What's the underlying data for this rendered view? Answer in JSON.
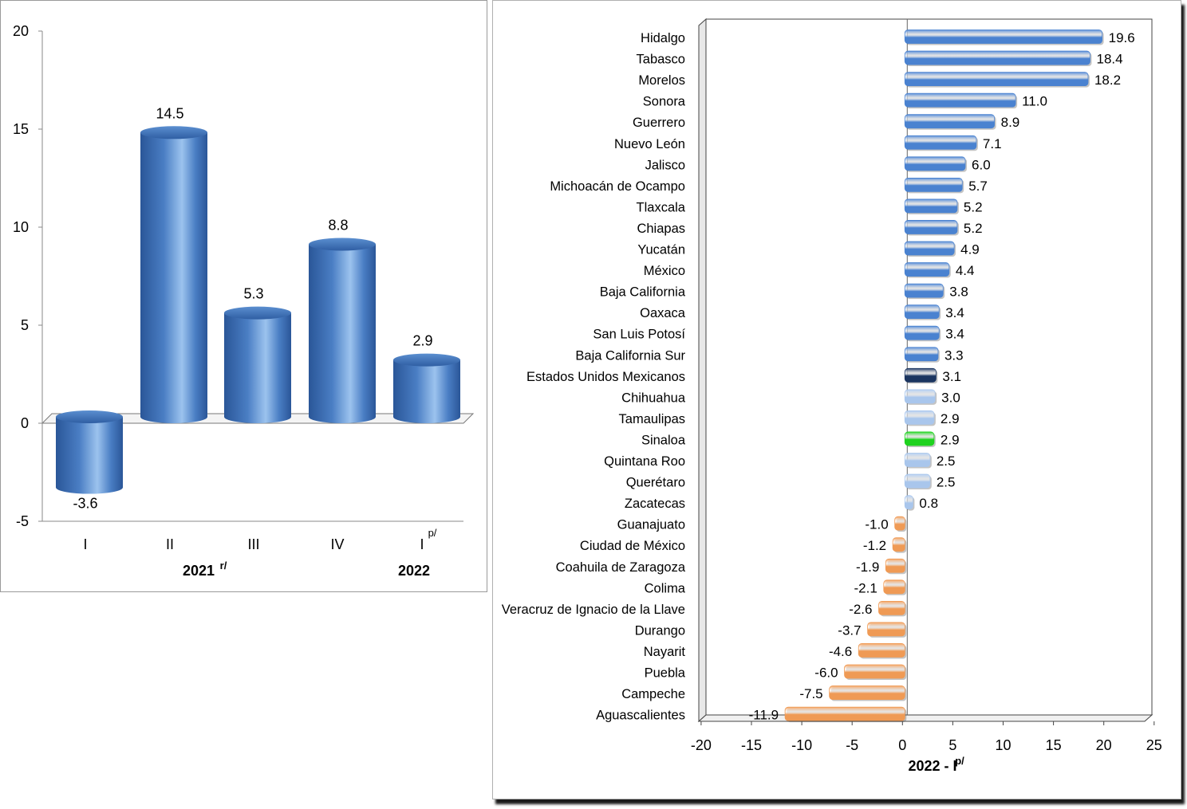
{
  "chart_data": [
    {
      "type": "bar",
      "style": "3d-cylinder",
      "title": "",
      "categories": [
        "I",
        "II",
        "III",
        "IV",
        "I"
      ],
      "category_superscripts": [
        "",
        "",
        "",
        "",
        "p/"
      ],
      "groups": [
        {
          "label": "2021",
          "superscript": "r/",
          "categories": [
            "I",
            "II",
            "III",
            "IV"
          ]
        },
        {
          "label": "2022",
          "superscript": "",
          "categories": [
            "I"
          ]
        }
      ],
      "values": [
        -3.6,
        14.5,
        5.3,
        8.8,
        2.9
      ],
      "value_labels": [
        "-3.6",
        "14.5",
        "5.3",
        "8.8",
        "2.9"
      ],
      "ylim": [
        -5,
        20
      ],
      "yticks": [
        "-5",
        "0",
        "5",
        "10",
        "15",
        "20"
      ],
      "ytick_values": [
        -5,
        0,
        5,
        10,
        15,
        20
      ],
      "xlabel": "",
      "ylabel": "",
      "colors": {
        "bar": "#4a7ec4",
        "bar_light": "#9cc3ee",
        "bar_dark": "#2a5698"
      }
    },
    {
      "type": "bar",
      "orientation": "horizontal",
      "xlabel": "2022 - I",
      "xlabel_superscript": "p/",
      "xlim": [
        -20,
        25
      ],
      "xticks": [
        "-20",
        "-15",
        "-10",
        "-5",
        "0",
        "5",
        "10",
        "15",
        "20",
        "25"
      ],
      "xtick_values": [
        -20,
        -15,
        -10,
        -5,
        0,
        5,
        10,
        15,
        20,
        25
      ],
      "categories": [
        "Hidalgo",
        "Tabasco",
        "Morelos",
        "Sonora",
        "Guerrero",
        "Nuevo León",
        "Jalisco",
        "Michoacán de Ocampo",
        "Tlaxcala",
        "Chiapas",
        "Yucatán",
        "México",
        "Baja California",
        "Oaxaca",
        "San Luis Potosí",
        "Baja California Sur",
        "Estados Unidos Mexicanos",
        "Chihuahua",
        "Tamaulipas",
        "Sinaloa",
        "Quintana Roo",
        "Querétaro",
        "Zacatecas",
        "Guanajuato",
        "Ciudad de México",
        "Coahuila de Zaragoza",
        "Colima",
        "Veracruz de Ignacio de la Llave",
        "Durango",
        "Nayarit",
        "Puebla",
        "Campeche",
        "Aguascalientes"
      ],
      "values": [
        19.6,
        18.4,
        18.2,
        11.0,
        8.9,
        7.1,
        6.0,
        5.7,
        5.2,
        5.2,
        4.9,
        4.4,
        3.8,
        3.4,
        3.4,
        3.3,
        3.1,
        3.0,
        2.9,
        2.9,
        2.5,
        2.5,
        0.8,
        -1.0,
        -1.2,
        -1.9,
        -2.1,
        -2.6,
        -3.7,
        -4.6,
        -6.0,
        -7.5,
        -11.9
      ],
      "value_labels": [
        "19.6",
        "18.4",
        "18.2",
        "11.0",
        "8.9",
        "7.1",
        "6.0",
        "5.7",
        "5.2",
        "5.2",
        "4.9",
        "4.4",
        "3.8",
        "3.4",
        "3.4",
        "3.3",
        "3.1",
        "3.0",
        "2.9",
        "2.9",
        "2.5",
        "2.5",
        "0.8",
        "-1.0",
        "-1.2",
        "-1.9",
        "-2.1",
        "-2.6",
        "-3.7",
        "-4.6",
        "-6.0",
        "-7.5",
        "-11.9"
      ],
      "bar_groups": [
        "above",
        "above",
        "above",
        "above",
        "above",
        "above",
        "above",
        "above",
        "above",
        "above",
        "above",
        "above",
        "above",
        "above",
        "above",
        "above",
        "national",
        "below",
        "below",
        "highlight",
        "below",
        "below",
        "below",
        "negative",
        "negative",
        "negative",
        "negative",
        "negative",
        "negative",
        "negative",
        "negative",
        "negative",
        "negative"
      ],
      "colors": {
        "above": "#4a82d0",
        "national": "#1b3560",
        "below": "#a9c6ec",
        "highlight": "#1fd21f",
        "negative": "#ef9a55"
      }
    }
  ]
}
